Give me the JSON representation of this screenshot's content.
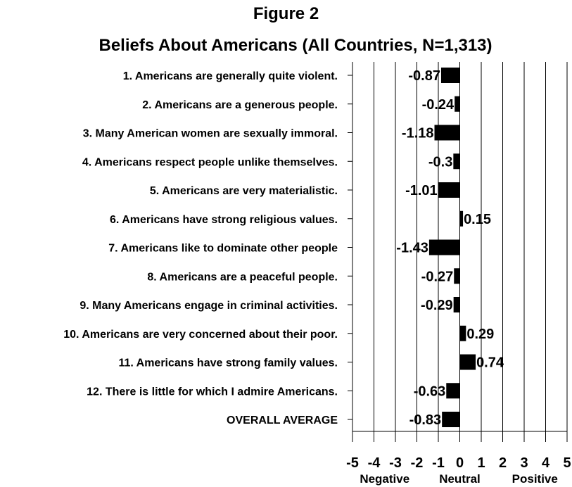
{
  "figure_label": "Figure 2",
  "chart_data": {
    "type": "bar",
    "orientation": "horizontal",
    "title": "Beliefs About Americans (All Countries, N=1,313)",
    "categories": [
      "1. Americans are generally quite violent.",
      "2. Americans are a generous people.",
      "3. Many American women are sexually immoral.",
      "4. Americans respect people unlike themselves.",
      "5. Americans are very materialistic.",
      "6. Americans have strong religious values.",
      "7. Americans like to dominate other people",
      "8. Americans are a peaceful people.",
      "9. Many Americans engage in criminal activities.",
      "10. Americans are very concerned about their poor.",
      "11. Americans have strong family values.",
      "12. There is little for which I admire Americans.",
      "OVERALL AVERAGE"
    ],
    "values": [
      -0.87,
      -0.24,
      -1.18,
      -0.3,
      -1.01,
      0.15,
      -1.43,
      -0.27,
      -0.29,
      0.29,
      0.74,
      -0.63,
      -0.83
    ],
    "value_labels": [
      "-0.87",
      "-0.24",
      "-1.18",
      "-0.3",
      "-1.01",
      "0.15",
      "-1.43",
      "-0.27",
      "-0.29",
      "0.29",
      "0.74",
      "-0.63",
      "-0.83"
    ],
    "xlim": [
      -5,
      5
    ],
    "xticks": [
      "-5",
      "-4",
      "-3",
      "-2",
      "-1",
      "0",
      "1",
      "2",
      "3",
      "4",
      "5"
    ],
    "scale_labels": {
      "negative": "Negative",
      "neutral": "Neutral",
      "positive": "Positive"
    },
    "grid": true,
    "bar_color": "#000000",
    "grid_color": "#000000"
  }
}
